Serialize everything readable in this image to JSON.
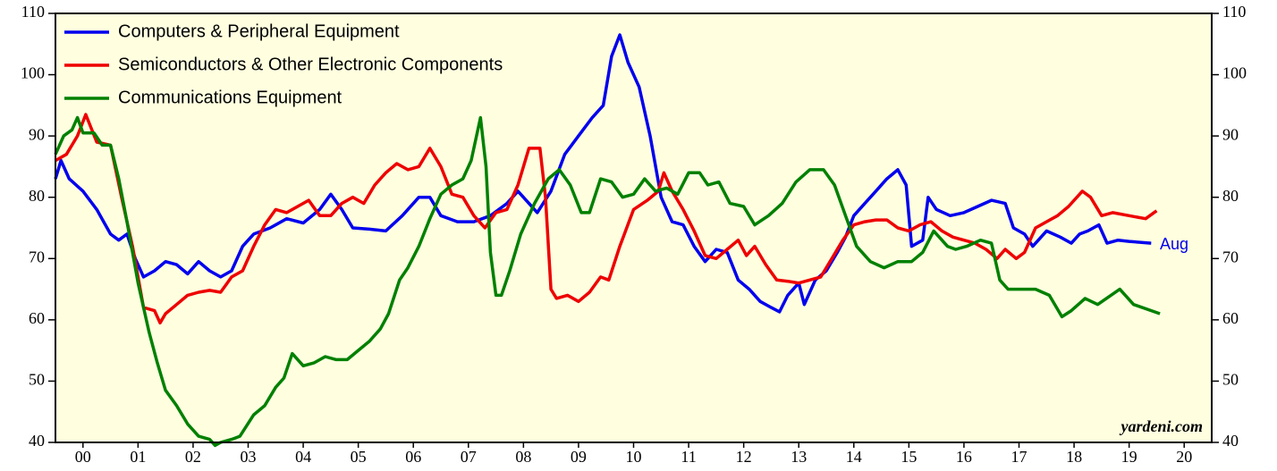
{
  "chart_data": {
    "type": "line",
    "xlim": [
      2000,
      2021
    ],
    "xticks": [
      {
        "value": 2000.5,
        "label": "00"
      },
      {
        "value": 2001.5,
        "label": "01"
      },
      {
        "value": 2002.5,
        "label": "02"
      },
      {
        "value": 2003.5,
        "label": "03"
      },
      {
        "value": 2004.5,
        "label": "04"
      },
      {
        "value": 2005.5,
        "label": "05"
      },
      {
        "value": 2006.5,
        "label": "06"
      },
      {
        "value": 2007.5,
        "label": "07"
      },
      {
        "value": 2008.5,
        "label": "08"
      },
      {
        "value": 2009.5,
        "label": "09"
      },
      {
        "value": 2010.5,
        "label": "10"
      },
      {
        "value": 2011.5,
        "label": "11"
      },
      {
        "value": 2012.5,
        "label": "12"
      },
      {
        "value": 2013.5,
        "label": "13"
      },
      {
        "value": 2014.5,
        "label": "14"
      },
      {
        "value": 2015.5,
        "label": "15"
      },
      {
        "value": 2016.5,
        "label": "16"
      },
      {
        "value": 2017.5,
        "label": "17"
      },
      {
        "value": 2018.5,
        "label": "18"
      },
      {
        "value": 2019.5,
        "label": "19"
      },
      {
        "value": 2020.5,
        "label": "20"
      }
    ],
    "ylim": [
      40,
      110
    ],
    "yticks": [
      40,
      50,
      60,
      70,
      80,
      90,
      100,
      110
    ],
    "y2lim": [
      40,
      110
    ],
    "y2ticks": [
      40,
      50,
      60,
      70,
      80,
      90,
      100,
      110
    ],
    "annotations": [
      "Aug",
      "yardeni.com"
    ],
    "series": [
      {
        "name": "Computers & Peripheral Equipment",
        "color": "#0000ee",
        "x": [
          2000.0,
          2000.1,
          2000.25,
          2000.5,
          2000.75,
          2001.0,
          2001.15,
          2001.3,
          2001.45,
          2001.6,
          2001.8,
          2002.0,
          2002.2,
          2002.4,
          2002.6,
          2002.8,
          2003.0,
          2003.2,
          2003.4,
          2003.6,
          2003.9,
          2004.2,
          2004.5,
          2004.8,
          2005.0,
          2005.2,
          2005.4,
          2005.7,
          2006.0,
          2006.3,
          2006.6,
          2006.8,
          2007.0,
          2007.3,
          2007.6,
          2007.9,
          2008.2,
          2008.4,
          2008.6,
          2008.75,
          2009.0,
          2009.25,
          2009.5,
          2009.75,
          2009.95,
          2010.1,
          2010.25,
          2010.4,
          2010.6,
          2010.8,
          2011.0,
          2011.2,
          2011.4,
          2011.6,
          2011.8,
          2012.0,
          2012.2,
          2012.4,
          2012.6,
          2012.8,
          2013.0,
          2013.15,
          2013.3,
          2013.5,
          2013.6,
          2013.8,
          2014.0,
          2014.2,
          2014.35,
          2014.5,
          2014.7,
          2014.9,
          2015.1,
          2015.3,
          2015.45,
          2015.55,
          2015.75,
          2015.85,
          2016.0,
          2016.25,
          2016.5,
          2016.75,
          2017.0,
          2017.25,
          2017.4,
          2017.6,
          2017.75,
          2018.0,
          2018.25,
          2018.45,
          2018.6,
          2018.75,
          2018.95,
          2019.1,
          2019.3,
          2019.5,
          2019.9
        ],
        "values": [
          83,
          86,
          83,
          81,
          78,
          74,
          73,
          74,
          70,
          67,
          68,
          69.5,
          69,
          67.5,
          69.5,
          68,
          67,
          68,
          72,
          74,
          75,
          76.5,
          75.8,
          78,
          80.5,
          78,
          75,
          74.8,
          74.5,
          77,
          80,
          80,
          77,
          76,
          76,
          77,
          79,
          81,
          79,
          77.5,
          81,
          87,
          90,
          93,
          95,
          103,
          106.5,
          102,
          98,
          90,
          80,
          76,
          75.5,
          72,
          69.5,
          71.5,
          71,
          66.5,
          65,
          63,
          62,
          61.3,
          64,
          66,
          62.5,
          66.5,
          68,
          71,
          73.5,
          77,
          79,
          81,
          83,
          84.5,
          82,
          72,
          73,
          80,
          78,
          77,
          77.5,
          78.5,
          79.5,
          79,
          75,
          74,
          72,
          74.5,
          73.5,
          72.5,
          74,
          74.5,
          75.5,
          72.5,
          73,
          72.8,
          72.5
        ]
      },
      {
        "name": "Semiconductors & Other Electronic Components",
        "color": "#ee0000",
        "x": [
          2000.0,
          2000.2,
          2000.4,
          2000.55,
          2000.75,
          2001.0,
          2001.2,
          2001.4,
          2001.6,
          2001.8,
          2001.9,
          2002.0,
          2002.2,
          2002.4,
          2002.6,
          2002.8,
          2003.0,
          2003.2,
          2003.4,
          2003.6,
          2003.8,
          2004.0,
          2004.2,
          2004.4,
          2004.6,
          2004.8,
          2005.0,
          2005.2,
          2005.4,
          2005.6,
          2005.8,
          2006.0,
          2006.2,
          2006.4,
          2006.6,
          2006.8,
          2007.0,
          2007.2,
          2007.4,
          2007.6,
          2007.8,
          2008.0,
          2008.2,
          2008.4,
          2008.6,
          2008.8,
          2008.9,
          2009.0,
          2009.1,
          2009.3,
          2009.5,
          2009.7,
          2009.9,
          2010.05,
          2010.25,
          2010.5,
          2010.75,
          2010.95,
          2011.05,
          2011.2,
          2011.4,
          2011.6,
          2011.8,
          2012.0,
          2012.2,
          2012.4,
          2012.55,
          2012.7,
          2012.9,
          2013.1,
          2013.3,
          2013.5,
          2013.7,
          2013.9,
          2014.1,
          2014.3,
          2014.5,
          2014.7,
          2014.9,
          2015.1,
          2015.3,
          2015.5,
          2015.7,
          2015.9,
          2016.1,
          2016.3,
          2016.5,
          2016.7,
          2016.9,
          2017.1,
          2017.25,
          2017.45,
          2017.6,
          2017.8,
          2018.0,
          2018.2,
          2018.4,
          2018.65,
          2018.8,
          2019.0,
          2019.2,
          2019.5,
          2019.8,
          2020.0
        ],
        "values": [
          86,
          87,
          90,
          93.5,
          89,
          88.5,
          80,
          72,
          62,
          61.5,
          59.5,
          61,
          62.5,
          64,
          64.5,
          64.8,
          64.5,
          67,
          68,
          72,
          75.5,
          78,
          77.5,
          78.5,
          79.5,
          77,
          77,
          79,
          80,
          79,
          82,
          84,
          85.5,
          84.5,
          85,
          88,
          85,
          80.5,
          80,
          77,
          75,
          77.5,
          78,
          82,
          88,
          88,
          80,
          65,
          63.5,
          64,
          63,
          64.5,
          67,
          66.5,
          72,
          78,
          79.5,
          81,
          84,
          81,
          78,
          74.5,
          70.5,
          70,
          71.5,
          73,
          70.5,
          72,
          69,
          66.5,
          66.3,
          66,
          66.5,
          67,
          70,
          73,
          75.5,
          76,
          76.3,
          76.3,
          75,
          74.5,
          75.5,
          76,
          74.5,
          73.5,
          73,
          72.5,
          71.5,
          70,
          71.5,
          70,
          71,
          75,
          76,
          77,
          78.5,
          81,
          80,
          77,
          77.5,
          77,
          76.5,
          77.8
        ]
      },
      {
        "name": "Communications Equipment",
        "color": "#008000",
        "x": [
          2000.0,
          2000.15,
          2000.3,
          2000.4,
          2000.5,
          2000.7,
          2000.85,
          2001.0,
          2001.15,
          2001.3,
          2001.5,
          2001.7,
          2001.85,
          2002.0,
          2002.2,
          2002.4,
          2002.6,
          2002.8,
          2002.9,
          2003.0,
          2003.2,
          2003.35,
          2003.6,
          2003.8,
          2004.0,
          2004.15,
          2004.3,
          2004.5,
          2004.7,
          2004.9,
          2005.1,
          2005.3,
          2005.5,
          2005.7,
          2005.9,
          2006.05,
          2006.25,
          2006.4,
          2006.6,
          2006.8,
          2007.0,
          2007.2,
          2007.4,
          2007.55,
          2007.72,
          2007.82,
          2007.9,
          2008.0,
          2008.1,
          2008.25,
          2008.45,
          2008.7,
          2008.95,
          2009.15,
          2009.35,
          2009.55,
          2009.7,
          2009.9,
          2010.1,
          2010.3,
          2010.5,
          2010.7,
          2010.9,
          2011.1,
          2011.3,
          2011.5,
          2011.7,
          2011.85,
          2012.05,
          2012.25,
          2012.5,
          2012.7,
          2012.95,
          2013.2,
          2013.45,
          2013.7,
          2013.95,
          2014.15,
          2014.35,
          2014.55,
          2014.8,
          2015.05,
          2015.3,
          2015.55,
          2015.75,
          2015.95,
          2016.2,
          2016.35,
          2016.55,
          2016.8,
          2017.0,
          2017.15,
          2017.3,
          2017.8,
          2018.05,
          2018.28,
          2018.45,
          2018.7,
          2018.93,
          2019.17,
          2019.33,
          2019.58,
          2020.06
        ],
        "values": [
          87,
          90,
          91,
          93,
          90.5,
          90.5,
          88.5,
          88.5,
          83,
          76,
          66,
          58,
          53,
          48.5,
          46,
          43,
          41,
          40.5,
          39.5,
          40,
          40.5,
          41,
          44.5,
          46,
          49,
          50.5,
          54.5,
          52.5,
          53,
          54,
          53.5,
          53.5,
          55,
          56.5,
          58.5,
          61,
          66.5,
          68.5,
          72,
          76.5,
          80.5,
          82,
          83,
          86,
          93,
          85,
          71,
          64,
          64,
          68,
          74,
          79,
          83,
          84.5,
          82,
          77.5,
          77.5,
          83,
          82.5,
          80,
          80.5,
          83,
          81,
          81.5,
          80.5,
          84,
          84,
          82,
          82.5,
          79,
          78.5,
          75.5,
          77,
          79,
          82.5,
          84.5,
          84.5,
          82,
          77,
          72,
          69.5,
          68.5,
          69.5,
          69.5,
          71,
          74.5,
          72,
          71.5,
          72,
          73,
          72.5,
          66.5,
          65,
          65,
          64,
          60.5,
          61.5,
          63.5,
          62.5,
          64,
          65,
          62.5,
          61
        ]
      }
    ]
  }
}
